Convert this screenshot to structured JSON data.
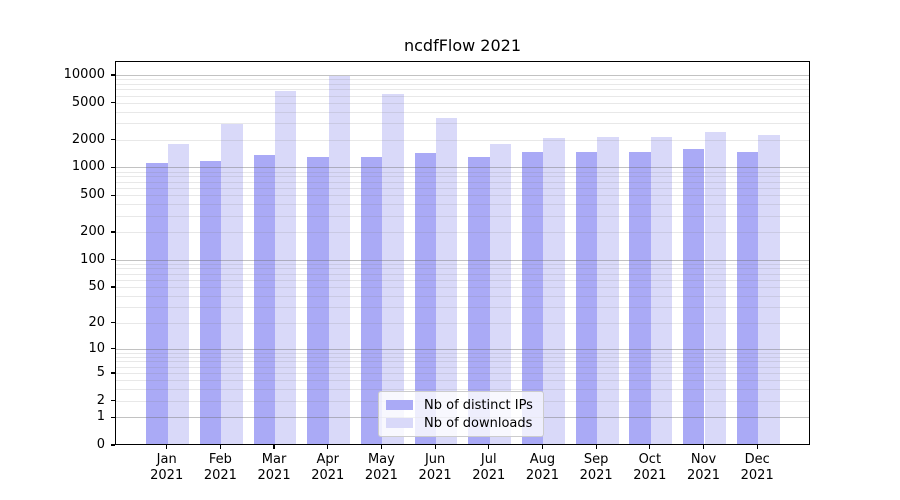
{
  "chart_data": {
    "type": "bar",
    "title": "ncdfFlow 2021",
    "categories": [
      "Jan",
      "Feb",
      "Mar",
      "Apr",
      "May",
      "Jun",
      "Jul",
      "Aug",
      "Sep",
      "Oct",
      "Nov",
      "Dec"
    ],
    "category_year": "2021",
    "series": [
      {
        "name": "Nb of distinct IPs",
        "color": "#aaaaf6",
        "values": [
          1100,
          1140,
          1330,
          1280,
          1280,
          1400,
          1260,
          1420,
          1450,
          1420,
          1550,
          1420
        ]
      },
      {
        "name": "Nb of downloads",
        "color": "#d9d9f9",
        "values": [
          1750,
          2900,
          6600,
          9400,
          6100,
          3380,
          1750,
          2020,
          2100,
          2100,
          2350,
          2190
        ]
      }
    ],
    "xlabel": "",
    "ylabel": "",
    "yscale": "log1p",
    "ylim": [
      0,
      14500
    ],
    "y_ticks": [
      10000,
      5000,
      2000,
      1000,
      500,
      200,
      100,
      50,
      20,
      10,
      5,
      2,
      1,
      0
    ],
    "grid": true,
    "grid_major_values": [
      1,
      10,
      100,
      1000,
      10000
    ],
    "legend_position": "lower-center",
    "legend_items": [
      "Nb of distinct IPs",
      "Nb of downloads"
    ]
  }
}
